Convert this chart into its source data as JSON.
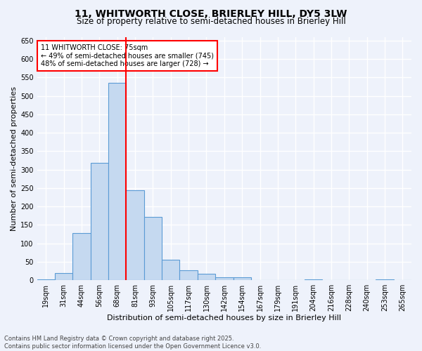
{
  "title1": "11, WHITWORTH CLOSE, BRIERLEY HILL, DY5 3LW",
  "title2": "Size of property relative to semi-detached houses in Brierley Hill",
  "xlabel": "Distribution of semi-detached houses by size in Brierley Hill",
  "ylabel": "Number of semi-detached properties",
  "categories": [
    "19sqm",
    "31sqm",
    "44sqm",
    "56sqm",
    "68sqm",
    "81sqm",
    "93sqm",
    "105sqm",
    "117sqm",
    "130sqm",
    "142sqm",
    "154sqm",
    "167sqm",
    "179sqm",
    "191sqm",
    "204sqm",
    "216sqm",
    "228sqm",
    "240sqm",
    "253sqm",
    "265sqm"
  ],
  "values": [
    3,
    20,
    128,
    318,
    535,
    243,
    172,
    55,
    27,
    18,
    8,
    7,
    0,
    0,
    0,
    2,
    0,
    0,
    0,
    2,
    0
  ],
  "bar_color": "#c5d9f0",
  "bar_edge_color": "#5b9bd5",
  "vline_x": 4.5,
  "vline_color": "red",
  "annotation_text": "11 WHITWORTH CLOSE: 75sqm\n← 49% of semi-detached houses are smaller (745)\n48% of semi-detached houses are larger (728) →",
  "annotation_box_color": "white",
  "annotation_box_edge_color": "red",
  "ylim": [
    0,
    660
  ],
  "yticks": [
    0,
    50,
    100,
    150,
    200,
    250,
    300,
    350,
    400,
    450,
    500,
    550,
    600,
    650
  ],
  "footnote": "Contains HM Land Registry data © Crown copyright and database right 2025.\nContains public sector information licensed under the Open Government Licence v3.0.",
  "background_color": "#eef2fb",
  "grid_color": "white",
  "title_fontsize": 10,
  "subtitle_fontsize": 8.5,
  "axis_label_fontsize": 8,
  "tick_fontsize": 7,
  "footnote_fontsize": 6
}
